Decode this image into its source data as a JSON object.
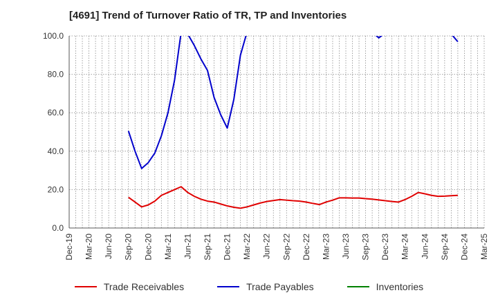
{
  "chart_data": {
    "type": "line",
    "title": "[4691]  Trend of Turnover Ratio of TR, TP and Inventories",
    "xlabel": "",
    "ylabel": "",
    "ylim": [
      0,
      100
    ],
    "yticks": [
      "0.0",
      "20.0",
      "40.0",
      "60.0",
      "80.0",
      "100.0"
    ],
    "x_tick_labels": [
      "Dec-19",
      "Mar-20",
      "Jun-20",
      "Sep-20",
      "Dec-20",
      "Mar-21",
      "Jun-21",
      "Sep-21",
      "Dec-21",
      "Mar-22",
      "Jun-22",
      "Sep-22",
      "Dec-22",
      "Mar-23",
      "Jun-23",
      "Sep-23",
      "Dec-23",
      "Mar-24",
      "Jun-24",
      "Sep-24",
      "Dec-24",
      "Mar-25"
    ],
    "grid": true,
    "legend_position": "bottom",
    "series": [
      {
        "name": "Trade Receivables",
        "color": "#e00000",
        "points": [
          [
            "Sep-20",
            16.0
          ],
          [
            "Oct-20",
            13.5
          ],
          [
            "Nov-20",
            11.0
          ],
          [
            "Dec-20",
            12.0
          ],
          [
            "Jan-21",
            14.0
          ],
          [
            "Feb-21",
            17.0
          ],
          [
            "Mar-21",
            18.5
          ],
          [
            "Apr-21",
            20.0
          ],
          [
            "May-21",
            21.5
          ],
          [
            "Jun-21",
            18.5
          ],
          [
            "Jul-21",
            16.5
          ],
          [
            "Aug-21",
            15.0
          ],
          [
            "Sep-21",
            14.0
          ],
          [
            "Oct-21",
            13.5
          ],
          [
            "Nov-21",
            12.5
          ],
          [
            "Dec-21",
            11.5
          ],
          [
            "Jan-22",
            10.8
          ],
          [
            "Feb-22",
            10.3
          ],
          [
            "Mar-22",
            11.0
          ],
          [
            "Apr-22",
            12.0
          ],
          [
            "May-22",
            13.0
          ],
          [
            "Jun-22",
            13.8
          ],
          [
            "Jul-22",
            14.3
          ],
          [
            "Aug-22",
            14.8
          ],
          [
            "Sep-22",
            14.5
          ],
          [
            "Oct-22",
            14.2
          ],
          [
            "Nov-22",
            14.0
          ],
          [
            "Dec-22",
            13.5
          ],
          [
            "Jan-23",
            12.8
          ],
          [
            "Feb-23",
            12.2
          ],
          [
            "Mar-23",
            13.5
          ],
          [
            "Apr-23",
            14.5
          ],
          [
            "May-23",
            15.7
          ],
          [
            "Jun-23",
            15.7
          ],
          [
            "Jul-23",
            15.6
          ],
          [
            "Aug-23",
            15.6
          ],
          [
            "Sep-23",
            15.3
          ],
          [
            "Oct-23",
            15.0
          ],
          [
            "Nov-23",
            14.6
          ],
          [
            "Dec-23",
            14.2
          ],
          [
            "Jan-24",
            13.8
          ],
          [
            "Feb-24",
            13.5
          ],
          [
            "Mar-24",
            14.8
          ],
          [
            "Apr-24",
            16.5
          ],
          [
            "May-24",
            18.5
          ],
          [
            "Jun-24",
            17.8
          ],
          [
            "Jul-24",
            17.0
          ],
          [
            "Aug-24",
            16.5
          ],
          [
            "Sep-24",
            16.6
          ],
          [
            "Oct-24",
            16.8
          ],
          [
            "Nov-24",
            17.0
          ]
        ]
      },
      {
        "name": "Trade Payables",
        "color": "#0000cc",
        "segments": [
          [
            [
              "Sep-20",
              50.5
            ],
            [
              "Oct-20",
              40.0
            ],
            [
              "Nov-20",
              31.0
            ],
            [
              "Dec-20",
              34.0
            ],
            [
              "Jan-21",
              39.0
            ],
            [
              "Feb-21",
              48.0
            ],
            [
              "Mar-21",
              60.0
            ],
            [
              "Apr-21",
              77.0
            ],
            [
              "May-21",
              102.0
            ],
            [
              "Jun-21",
              101.0
            ],
            [
              "Jul-21",
              95.0
            ],
            [
              "Aug-21",
              88.0
            ],
            [
              "Sep-21",
              82.0
            ],
            [
              "Oct-21",
              68.0
            ],
            [
              "Nov-21",
              59.0
            ],
            [
              "Dec-21",
              52.0
            ],
            [
              "Jan-22",
              67.0
            ],
            [
              "Feb-22",
              90.0
            ],
            [
              "Mar-22",
              102.0
            ]
          ],
          [
            [
              "Oct-23",
              102.0
            ],
            [
              "Nov-23",
              99.0
            ],
            [
              "Dec-23",
              101.5
            ]
          ],
          [
            [
              "Oct-24",
              101.0
            ],
            [
              "Nov-24",
              97.0
            ]
          ]
        ]
      },
      {
        "name": "Inventories",
        "color": "#008000",
        "points": []
      }
    ]
  }
}
